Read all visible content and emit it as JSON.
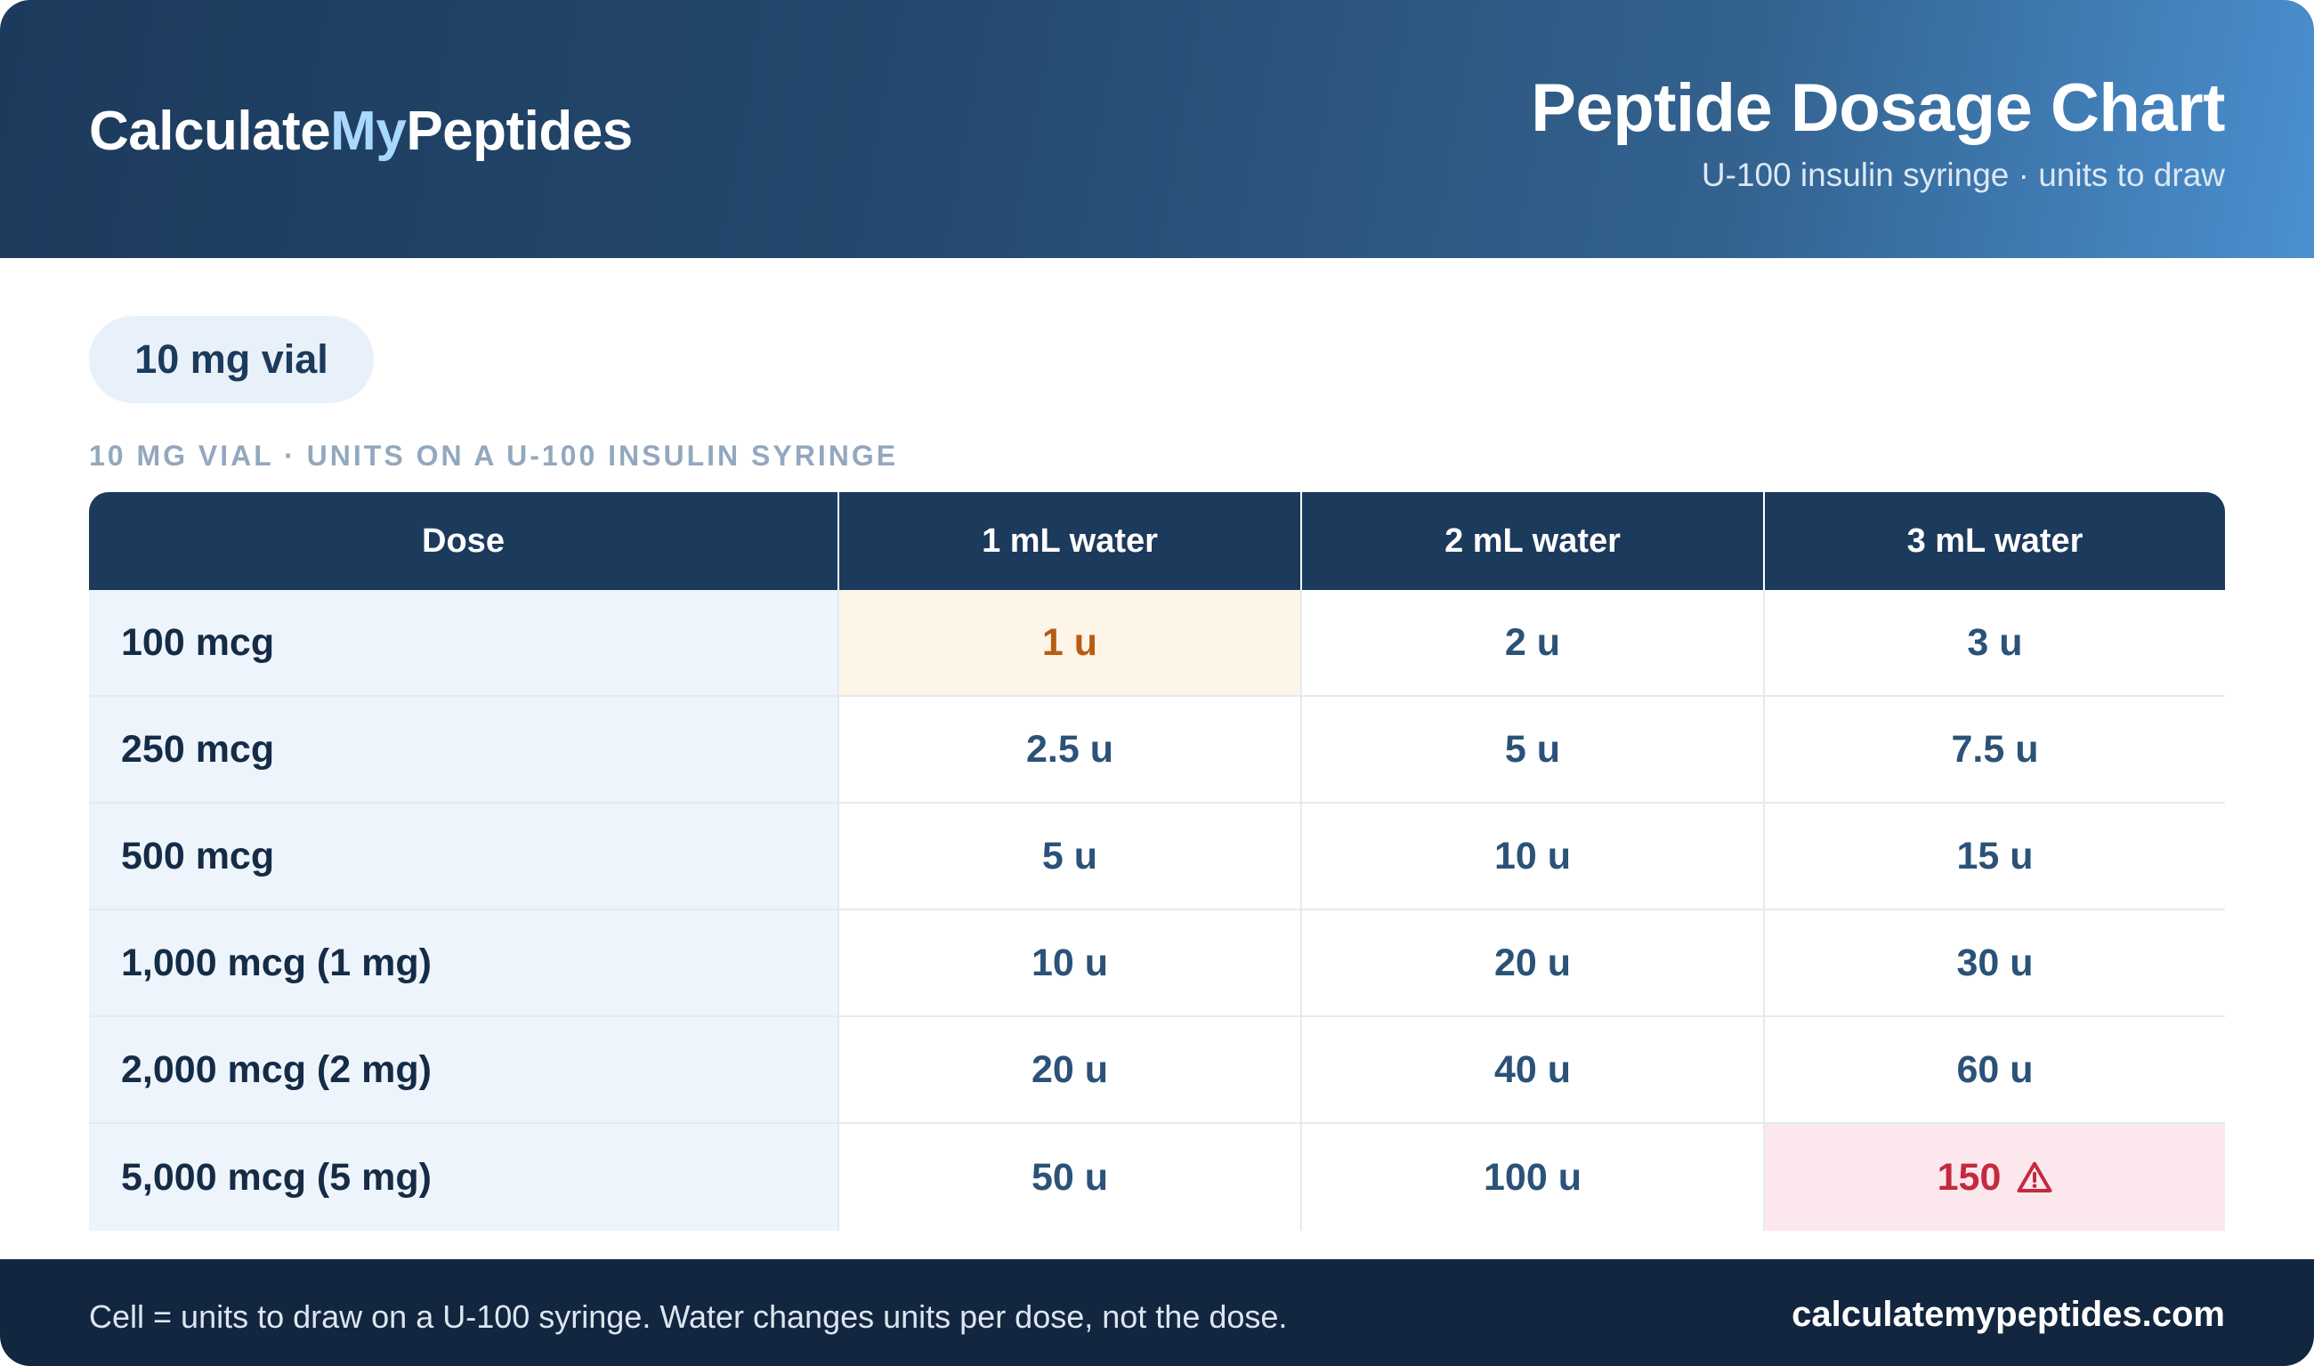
{
  "header": {
    "logo_part1": "Calculate",
    "logo_part2": "My",
    "logo_part3": "Peptides",
    "title": "Peptide Dosage Chart",
    "subtitle": "U-100 insulin syringe · units to draw"
  },
  "vial_pill": "10 mg vial",
  "caption": "10 MG VIAL · UNITS ON A U-100 INSULIN SYRINGE",
  "table": {
    "headers": [
      "Dose",
      "1 mL water",
      "2 mL water",
      "3 mL water"
    ],
    "rows": [
      {
        "dose": "100 mcg",
        "w1": "1 u",
        "w2": "2 u",
        "w3": "3 u"
      },
      {
        "dose": "250 mcg",
        "w1": "2.5 u",
        "w2": "5 u",
        "w3": "7.5 u"
      },
      {
        "dose": "500 mcg",
        "w1": "5 u",
        "w2": "10 u",
        "w3": "15 u"
      },
      {
        "dose": "1,000 mcg (1 mg)",
        "w1": "10 u",
        "w2": "20 u",
        "w3": "30 u"
      },
      {
        "dose": "2,000 mcg (2 mg)",
        "w1": "20 u",
        "w2": "40 u",
        "w3": "60 u"
      },
      {
        "dose": "5,000 mcg (5 mg)",
        "w1": "50 u",
        "w2": "100 u",
        "w3": "150"
      }
    ]
  },
  "footer": {
    "note": "Cell = units to draw on a U-100 syringe. Water changes units per dose, not the dose.",
    "url": "calculatemypeptides.com"
  },
  "colors": {
    "header_dark": "#1c3a5c",
    "header_light": "#4a90d0",
    "highlight_bg": "#fdf5e8",
    "highlight_text": "#b85c14",
    "warning_bg": "#fce8ec",
    "warning_text": "#c42a3f",
    "footer_bg": "#13263f"
  },
  "icons": {
    "warning": "warning-triangle-icon"
  }
}
